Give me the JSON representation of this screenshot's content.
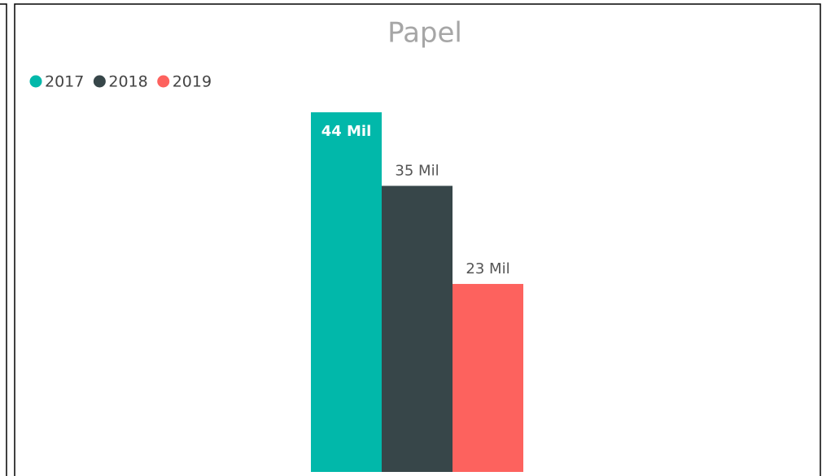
{
  "chart_data": {
    "type": "bar",
    "title": "Papel",
    "categories": [
      null
    ],
    "series": [
      {
        "name": "2017",
        "color": "#01B8AA",
        "values": [
          44
        ],
        "value_labels": [
          "44 Mil"
        ]
      },
      {
        "name": "2018",
        "color": "#374649",
        "values": [
          35
        ],
        "value_labels": [
          "35 Mil"
        ]
      },
      {
        "name": "2019",
        "color": "#FD625E",
        "values": [
          23
        ],
        "value_labels": [
          "23 Mil"
        ]
      }
    ],
    "legend": "top-left"
  }
}
